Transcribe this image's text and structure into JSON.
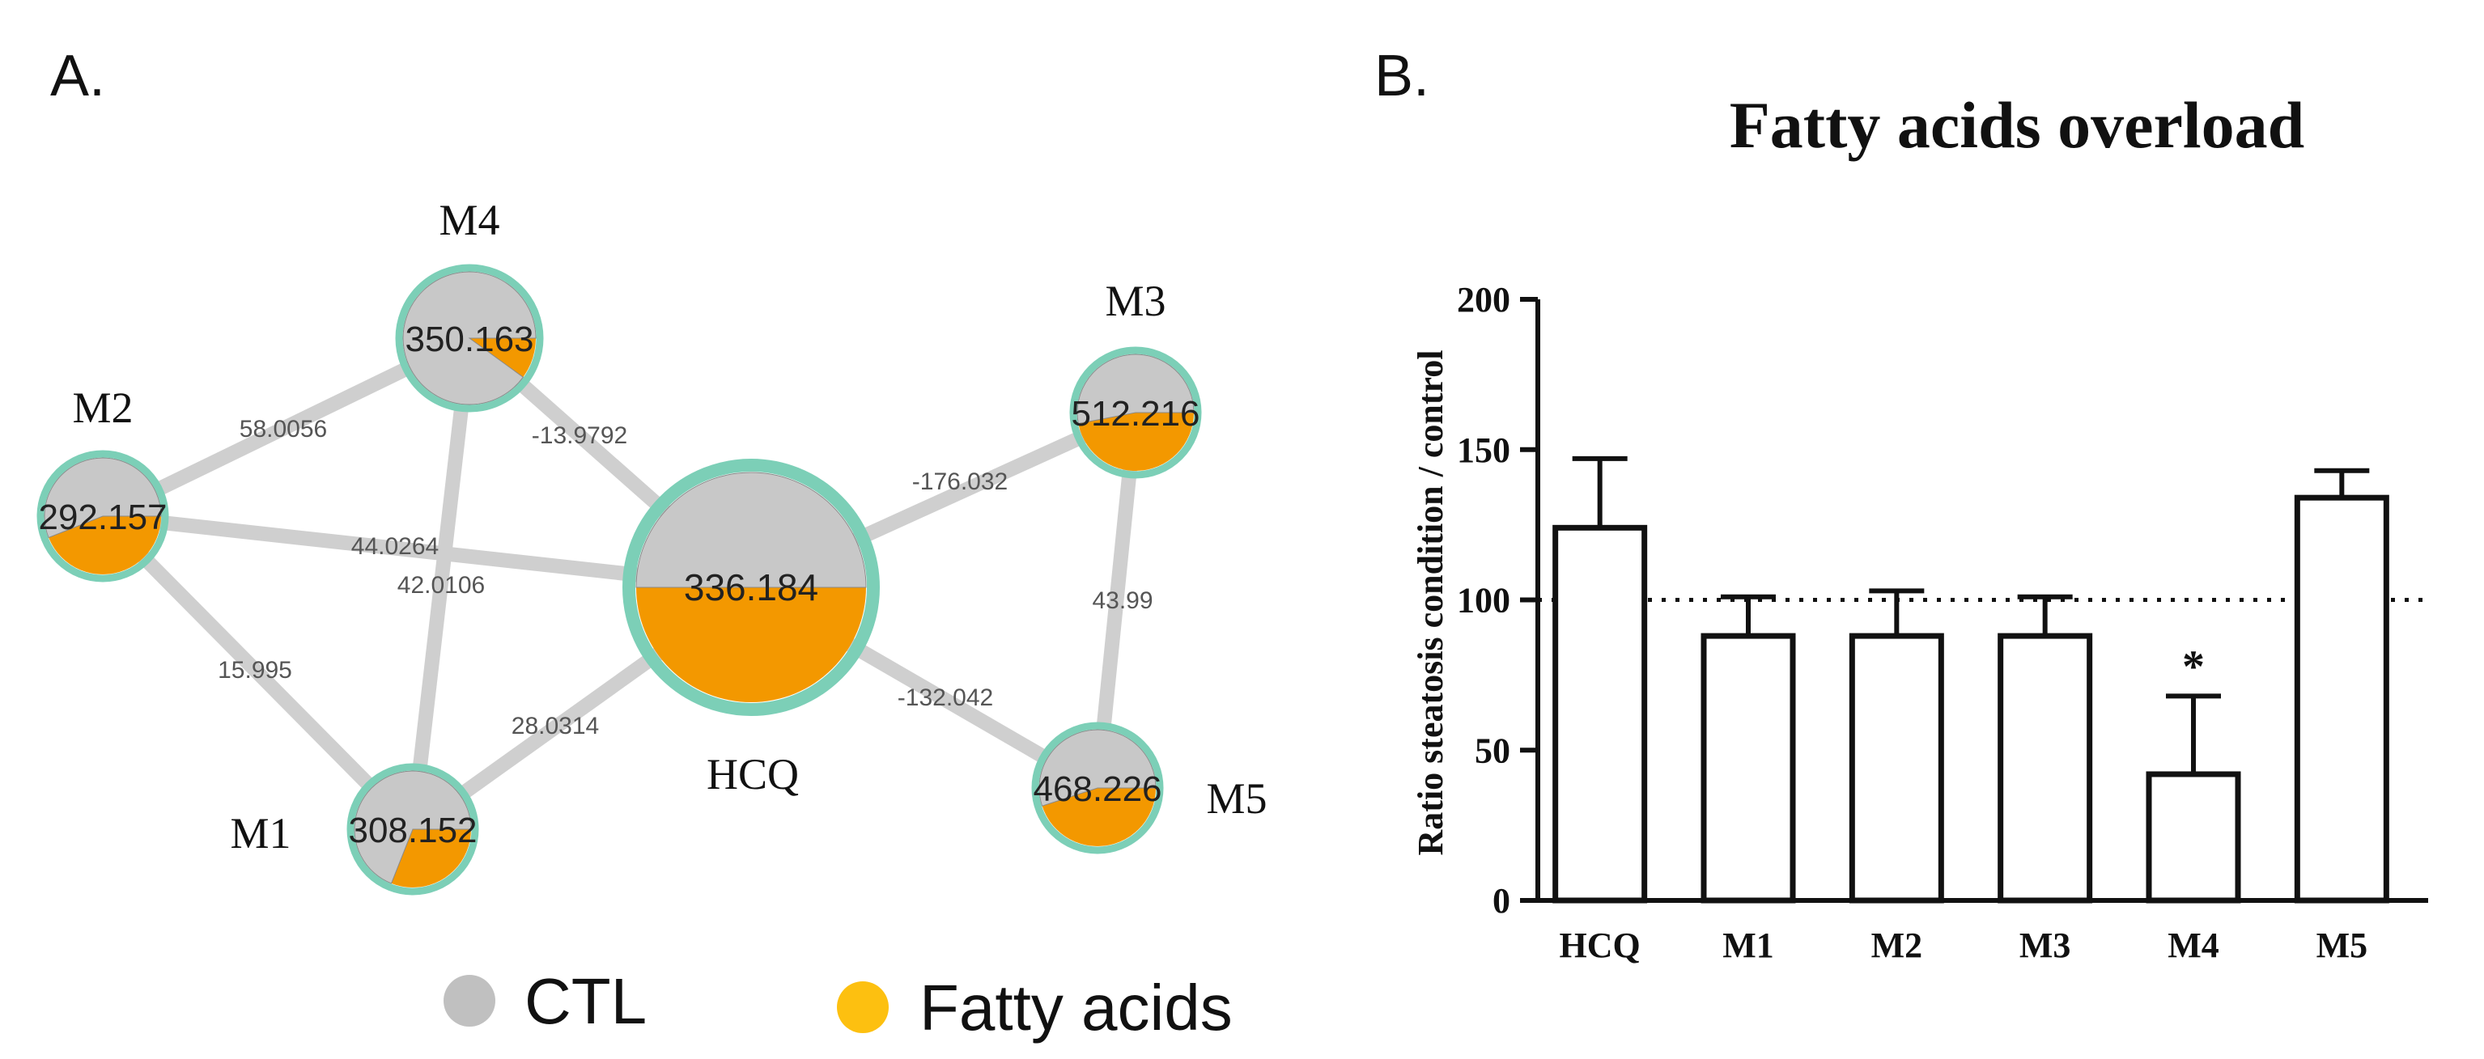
{
  "panel_a": {
    "label": "A.",
    "nodes": [
      {
        "id": "HCQ",
        "name": "HCQ",
        "mass": "336.184",
        "ctl_fraction": 0.5
      },
      {
        "id": "M1",
        "name": "M1",
        "mass": "308.152",
        "ctl_fraction": 0.69
      },
      {
        "id": "M2",
        "name": "M2",
        "mass": "292.157",
        "ctl_fraction": 0.56
      },
      {
        "id": "M3",
        "name": "M3",
        "mass": "512.216",
        "ctl_fraction": 0.53
      },
      {
        "id": "M4",
        "name": "M4",
        "mass": "350.163",
        "ctl_fraction": 0.9
      },
      {
        "id": "M5",
        "name": "M5",
        "mass": "468.226",
        "ctl_fraction": 0.55
      }
    ],
    "edges": [
      {
        "from": "M2",
        "to": "M4",
        "label": "58.0056"
      },
      {
        "from": "M4",
        "to": "HCQ",
        "label": "-13.9792"
      },
      {
        "from": "M2",
        "to": "HCQ",
        "label": "44.0264"
      },
      {
        "from": "M4",
        "to": "M1",
        "label": "42.0106"
      },
      {
        "from": "M2",
        "to": "M1",
        "label": "15.995"
      },
      {
        "from": "M1",
        "to": "HCQ",
        "label": "28.0314"
      },
      {
        "from": "HCQ",
        "to": "M3",
        "label": "-176.032"
      },
      {
        "from": "M3",
        "to": "M5",
        "label": "43.99"
      },
      {
        "from": "HCQ",
        "to": "M5",
        "label": "-132.042"
      }
    ],
    "legend": [
      {
        "label": "CTL",
        "color": "#c0c0c0"
      },
      {
        "label": "Fatty acids",
        "color": "#fdc010"
      }
    ],
    "colors": {
      "ctl": "#c8c8c8",
      "fatty": "#f39800",
      "ring": "#7ccfb7",
      "edge": "#cfcfcf",
      "edge_label": "#555555"
    }
  },
  "panel_b": {
    "label": "B."
  },
  "chart_data": {
    "type": "bar",
    "title": "Fatty acids overload",
    "xlabel": "",
    "ylabel": "Ratio steatosis condition / control",
    "categories": [
      "HCQ",
      "M1",
      "M2",
      "M3",
      "M4",
      "M5"
    ],
    "values": [
      124,
      88,
      88,
      88,
      42,
      134
    ],
    "error_upper": [
      23,
      13,
      15,
      13,
      26,
      9
    ],
    "annotations": [
      {
        "category": "M4",
        "text": "*"
      }
    ],
    "ylim": [
      0,
      200
    ],
    "yticks": [
      0,
      50,
      100,
      150,
      200
    ],
    "reference_line": 100,
    "grid": false
  }
}
